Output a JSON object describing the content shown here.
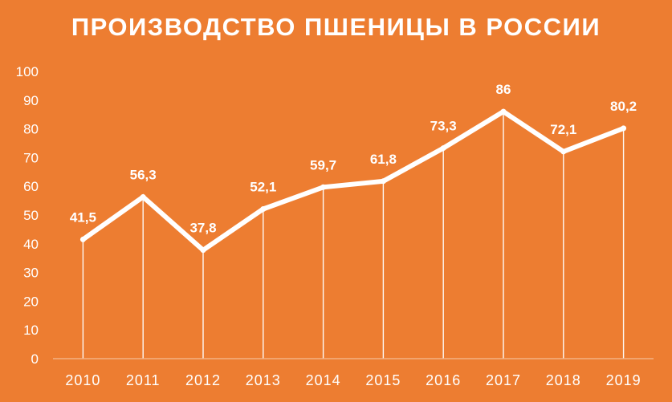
{
  "colors": {
    "background": "#ED7D31",
    "foreground": "#ffffff"
  },
  "chart_data": {
    "type": "line",
    "title": "ПРОИЗВОДСТВО ПШЕНИЦЫ В РОССИИ",
    "xlabel": "",
    "ylabel": "",
    "categories": [
      "2010",
      "2011",
      "2012",
      "2013",
      "2014",
      "2015",
      "2016",
      "2017",
      "2018",
      "2019"
    ],
    "values": [
      41.5,
      56.3,
      37.8,
      52.1,
      59.7,
      61.8,
      73.3,
      86,
      72.1,
      80.2
    ],
    "data_labels": [
      "41,5",
      "56,3",
      "37,8",
      "52,1",
      "59,7",
      "61,8",
      "73,3",
      "86",
      "72,1",
      "80,2"
    ],
    "yticks": [
      "0",
      "10",
      "20",
      "30",
      "40",
      "50",
      "60",
      "70",
      "80",
      "90",
      "100"
    ],
    "ylim": [
      0,
      100
    ],
    "grid": false,
    "drop_lines": true,
    "legend": "none"
  }
}
